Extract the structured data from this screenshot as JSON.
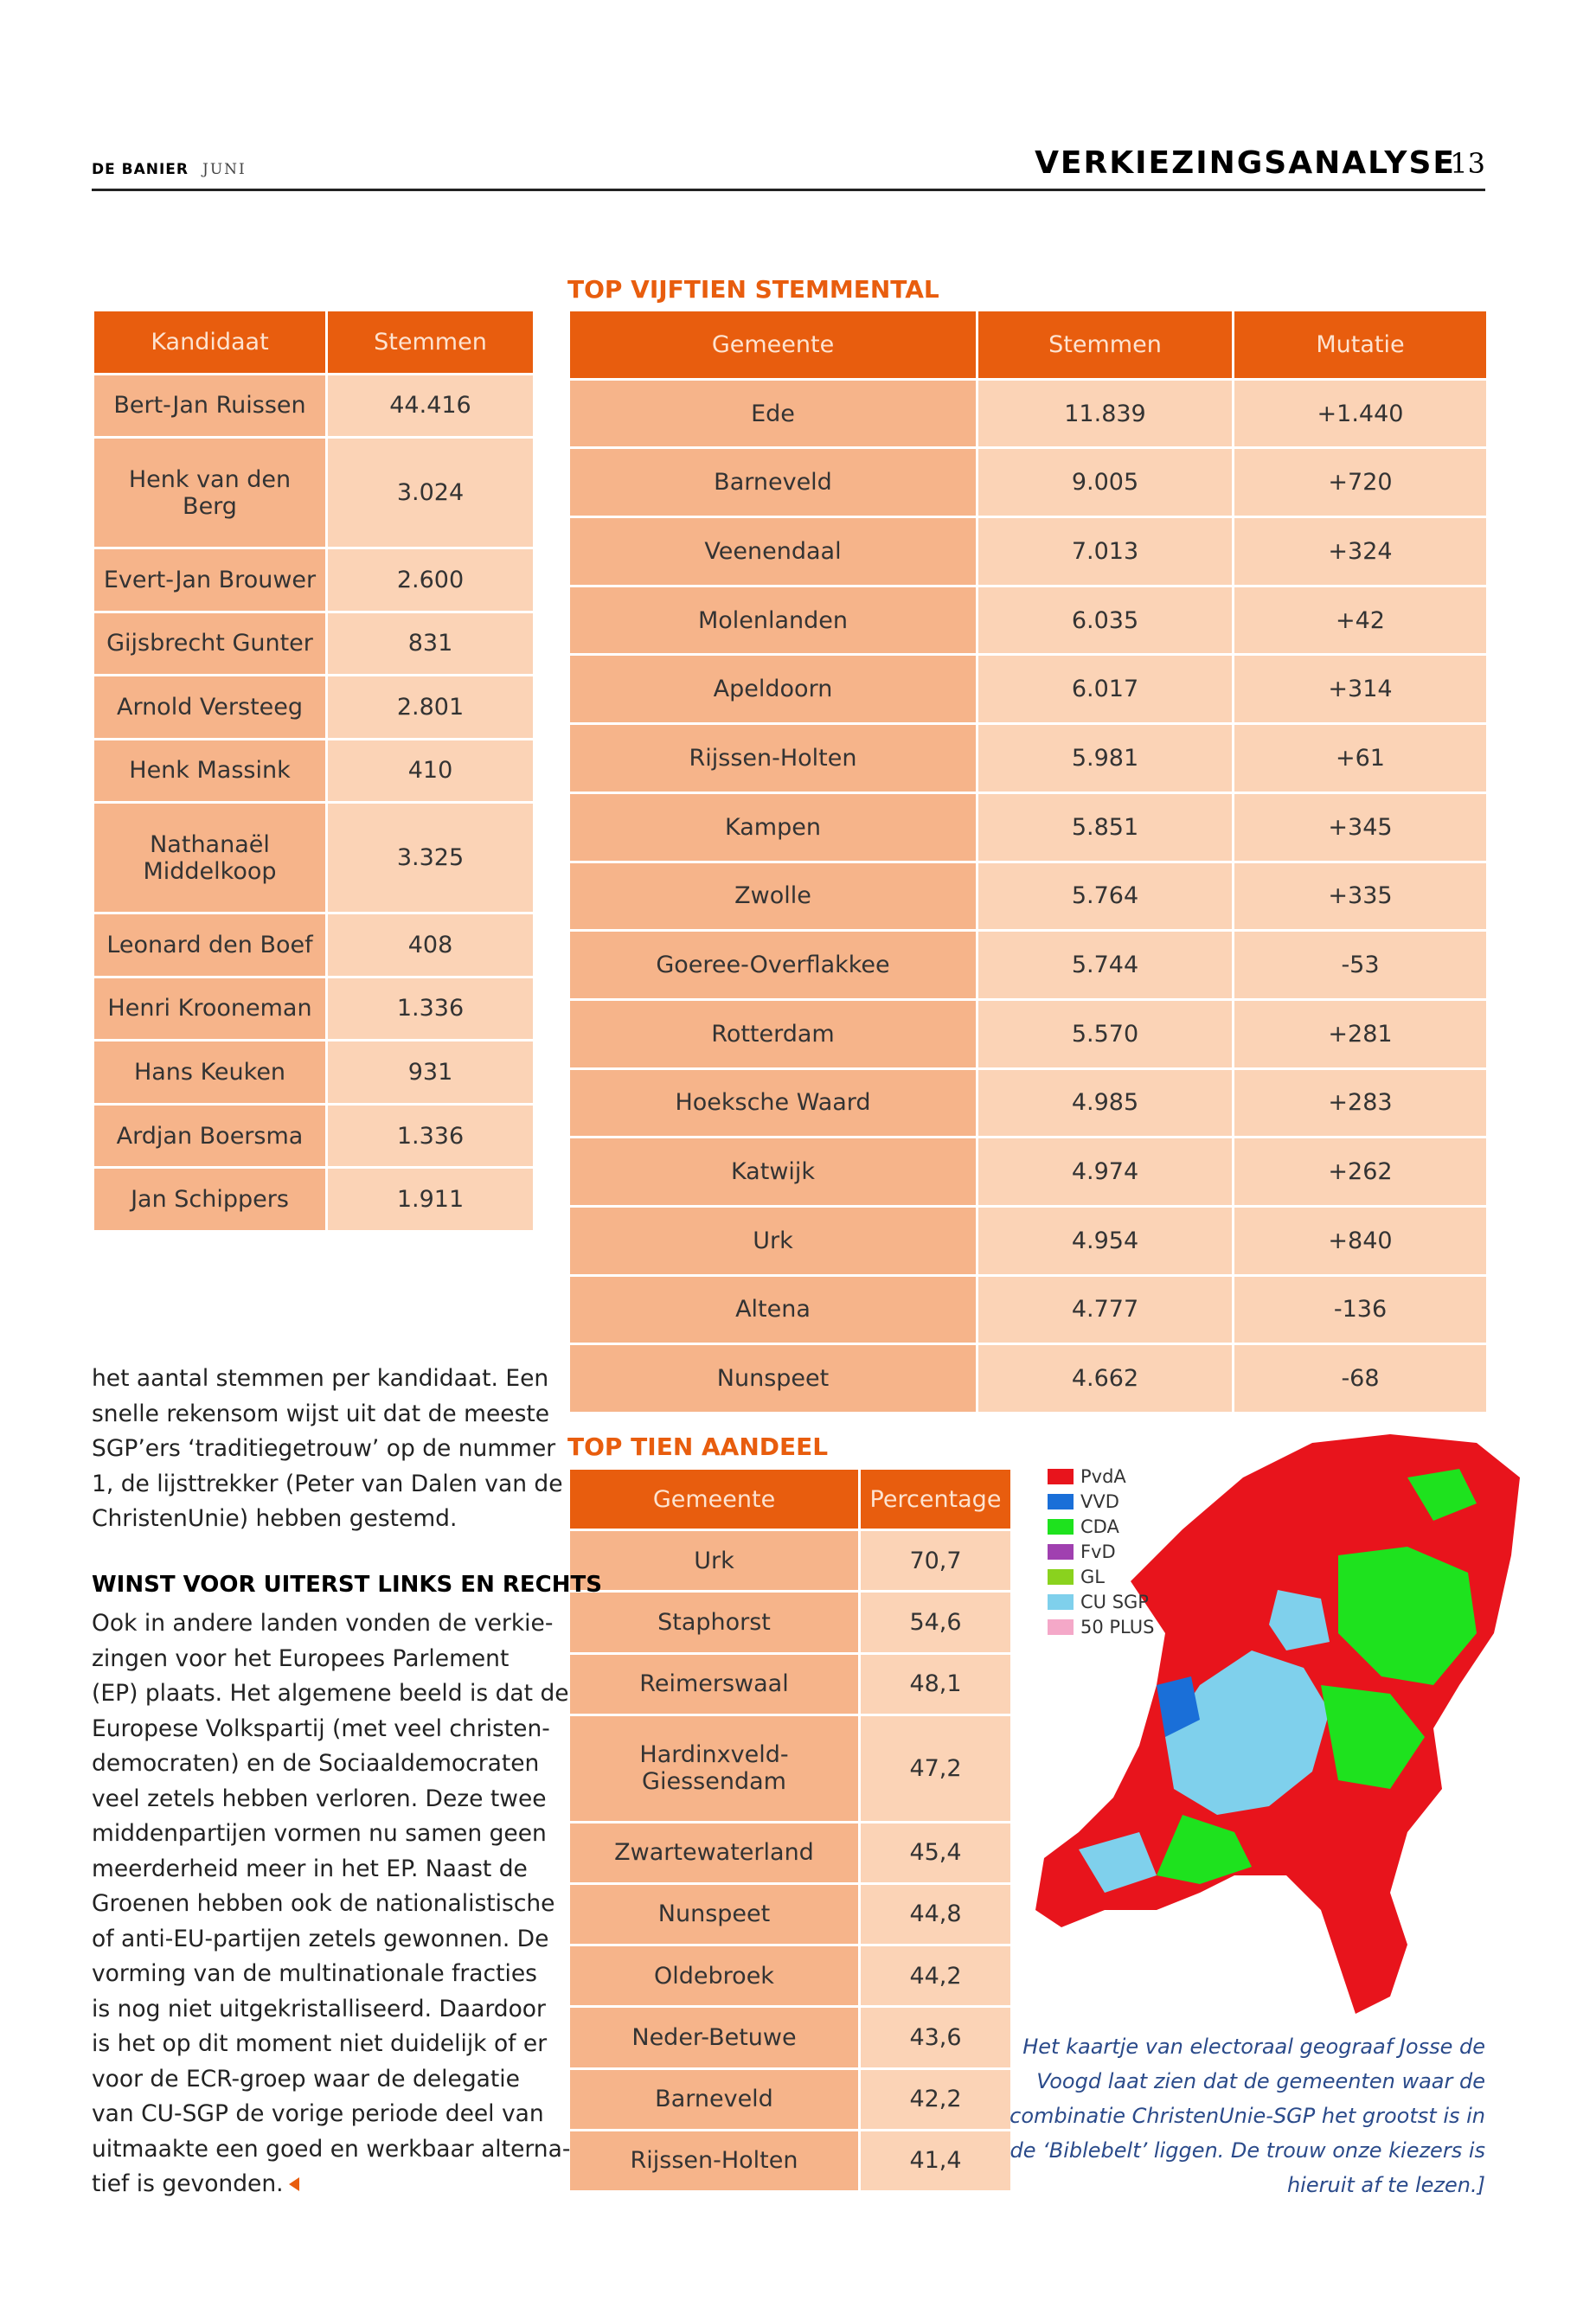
{
  "header": {
    "publication": "DE BANIER",
    "month": "JUNI",
    "section": "VERKIEZINGSANALYSE",
    "page": "13"
  },
  "candidates": {
    "columns": [
      "Kandidaat",
      "Stemmen"
    ],
    "rows": [
      [
        "Bert-Jan Ruissen",
        "44.416"
      ],
      [
        "Henk van den Berg",
        "3.024"
      ],
      [
        "Evert-Jan Brouwer",
        "2.600"
      ],
      [
        "Gijsbrecht Gunter",
        "831"
      ],
      [
        "Arnold Versteeg",
        "2.801"
      ],
      [
        "Henk Massink",
        "410"
      ],
      [
        "Nathanaël Middelkoop",
        "3.325"
      ],
      [
        "Leonard den Boef",
        "408"
      ],
      [
        "Henri Krooneman",
        "1.336"
      ],
      [
        "Hans Keuken",
        "931"
      ],
      [
        "Ardjan Boersma",
        "1.336"
      ],
      [
        "Jan Schippers",
        "1.911"
      ]
    ]
  },
  "top_votes": {
    "title": "TOP VIJFTIEN STEMMENTAL",
    "columns": [
      "Gemeente",
      "Stemmen",
      "Mutatie"
    ],
    "rows": [
      [
        "Ede",
        "11.839",
        "+1.440"
      ],
      [
        "Barneveld",
        "9.005",
        "+720"
      ],
      [
        "Veenendaal",
        "7.013",
        "+324"
      ],
      [
        "Molenlanden",
        "6.035",
        "+42"
      ],
      [
        "Apeldoorn",
        "6.017",
        "+314"
      ],
      [
        "Rijssen-Holten",
        "5.981",
        "+61"
      ],
      [
        "Kampen",
        "5.851",
        "+345"
      ],
      [
        "Zwolle",
        "5.764",
        "+335"
      ],
      [
        "Goeree-Overflakkee",
        "5.744",
        "-53"
      ],
      [
        "Rotterdam",
        "5.570",
        "+281"
      ],
      [
        "Hoeksche Waard",
        "4.985",
        "+283"
      ],
      [
        "Katwijk",
        "4.974",
        "+262"
      ],
      [
        "Urk",
        "4.954",
        "+840"
      ],
      [
        "Altena",
        "4.777",
        "-136"
      ],
      [
        "Nunspeet",
        "4.662",
        "-68"
      ]
    ]
  },
  "top_share": {
    "title": "TOP TIEN AANDEEL",
    "columns": [
      "Gemeente",
      "Percentage"
    ],
    "rows": [
      [
        "Urk",
        "70,7"
      ],
      [
        "Staphorst",
        "54,6"
      ],
      [
        "Reimerswaal",
        "48,1"
      ],
      [
        "Hardinxveld-Giessendam",
        "47,2"
      ],
      [
        "Zwartewaterland",
        "45,4"
      ],
      [
        "Nunspeet",
        "44,8"
      ],
      [
        "Oldebroek",
        "44,2"
      ],
      [
        "Neder-Betuwe",
        "43,6"
      ],
      [
        "Barneveld",
        "42,2"
      ],
      [
        "Rijssen-Holten",
        "41,4"
      ]
    ]
  },
  "body": {
    "paragraph1": [
      "het aantal stemmen per kandidaat. Een",
      "snelle rekensom wijst uit dat de meeste",
      "SGP’ers ‘traditiegetrouw’ op de nummer",
      "1, de lijsttrekker (Peter van Dalen van de",
      "ChristenUnie) hebben gestemd."
    ],
    "heading": "WINST VOOR UITERST LINKS EN RECHTS",
    "paragraph2": [
      "Ook in andere landen vonden de verkie-",
      "zingen voor het Europees Parlement",
      "(EP) plaats. Het algemene beeld is dat de",
      "Europese Volkspartij (met veel christen-",
      "democraten) en de Sociaaldemocraten",
      "veel zetels hebben verloren. Deze twee",
      "middenpartijen vormen nu samen geen",
      "meerderheid meer in het EP. Naast de",
      "Groenen hebben ook de nationalistische",
      "of anti-EU-partijen zetels gewonnen. De",
      "vorming van de multinationale fracties",
      "is nog niet uitgekristalliseerd. Daardoor",
      "is het op dit moment niet duidelijk of er",
      "voor de ECR-groep waar de delegatie",
      "van CU-SGP de vorige periode deel van",
      "uitmaakte een goed en werkbaar alterna-",
      "tief is gevonden."
    ]
  },
  "map": {
    "legend": [
      {
        "label": "PvdA",
        "color": "#e8141c"
      },
      {
        "label": "VVD",
        "color": "#1a6fd8"
      },
      {
        "label": "CDA",
        "color": "#1ee21e"
      },
      {
        "label": "FvD",
        "color": "#a040b0"
      },
      {
        "label": "GL",
        "color": "#8ad21e"
      },
      {
        "label": "CU SGP",
        "color": "#7fd0ec"
      },
      {
        "label": "50 PLUS",
        "color": "#f4a8c8"
      }
    ],
    "caption": [
      "Het kaartje van electoraal geograaf Josse de",
      "Voogd laat zien dat de gemeenten waar de",
      "combinatie ChristenUnie-SGP het grootst is in",
      "de ‘Biblebelt’ liggen. De trouw  onze kiezers is",
      "hieruit af te lezen.]"
    ]
  }
}
